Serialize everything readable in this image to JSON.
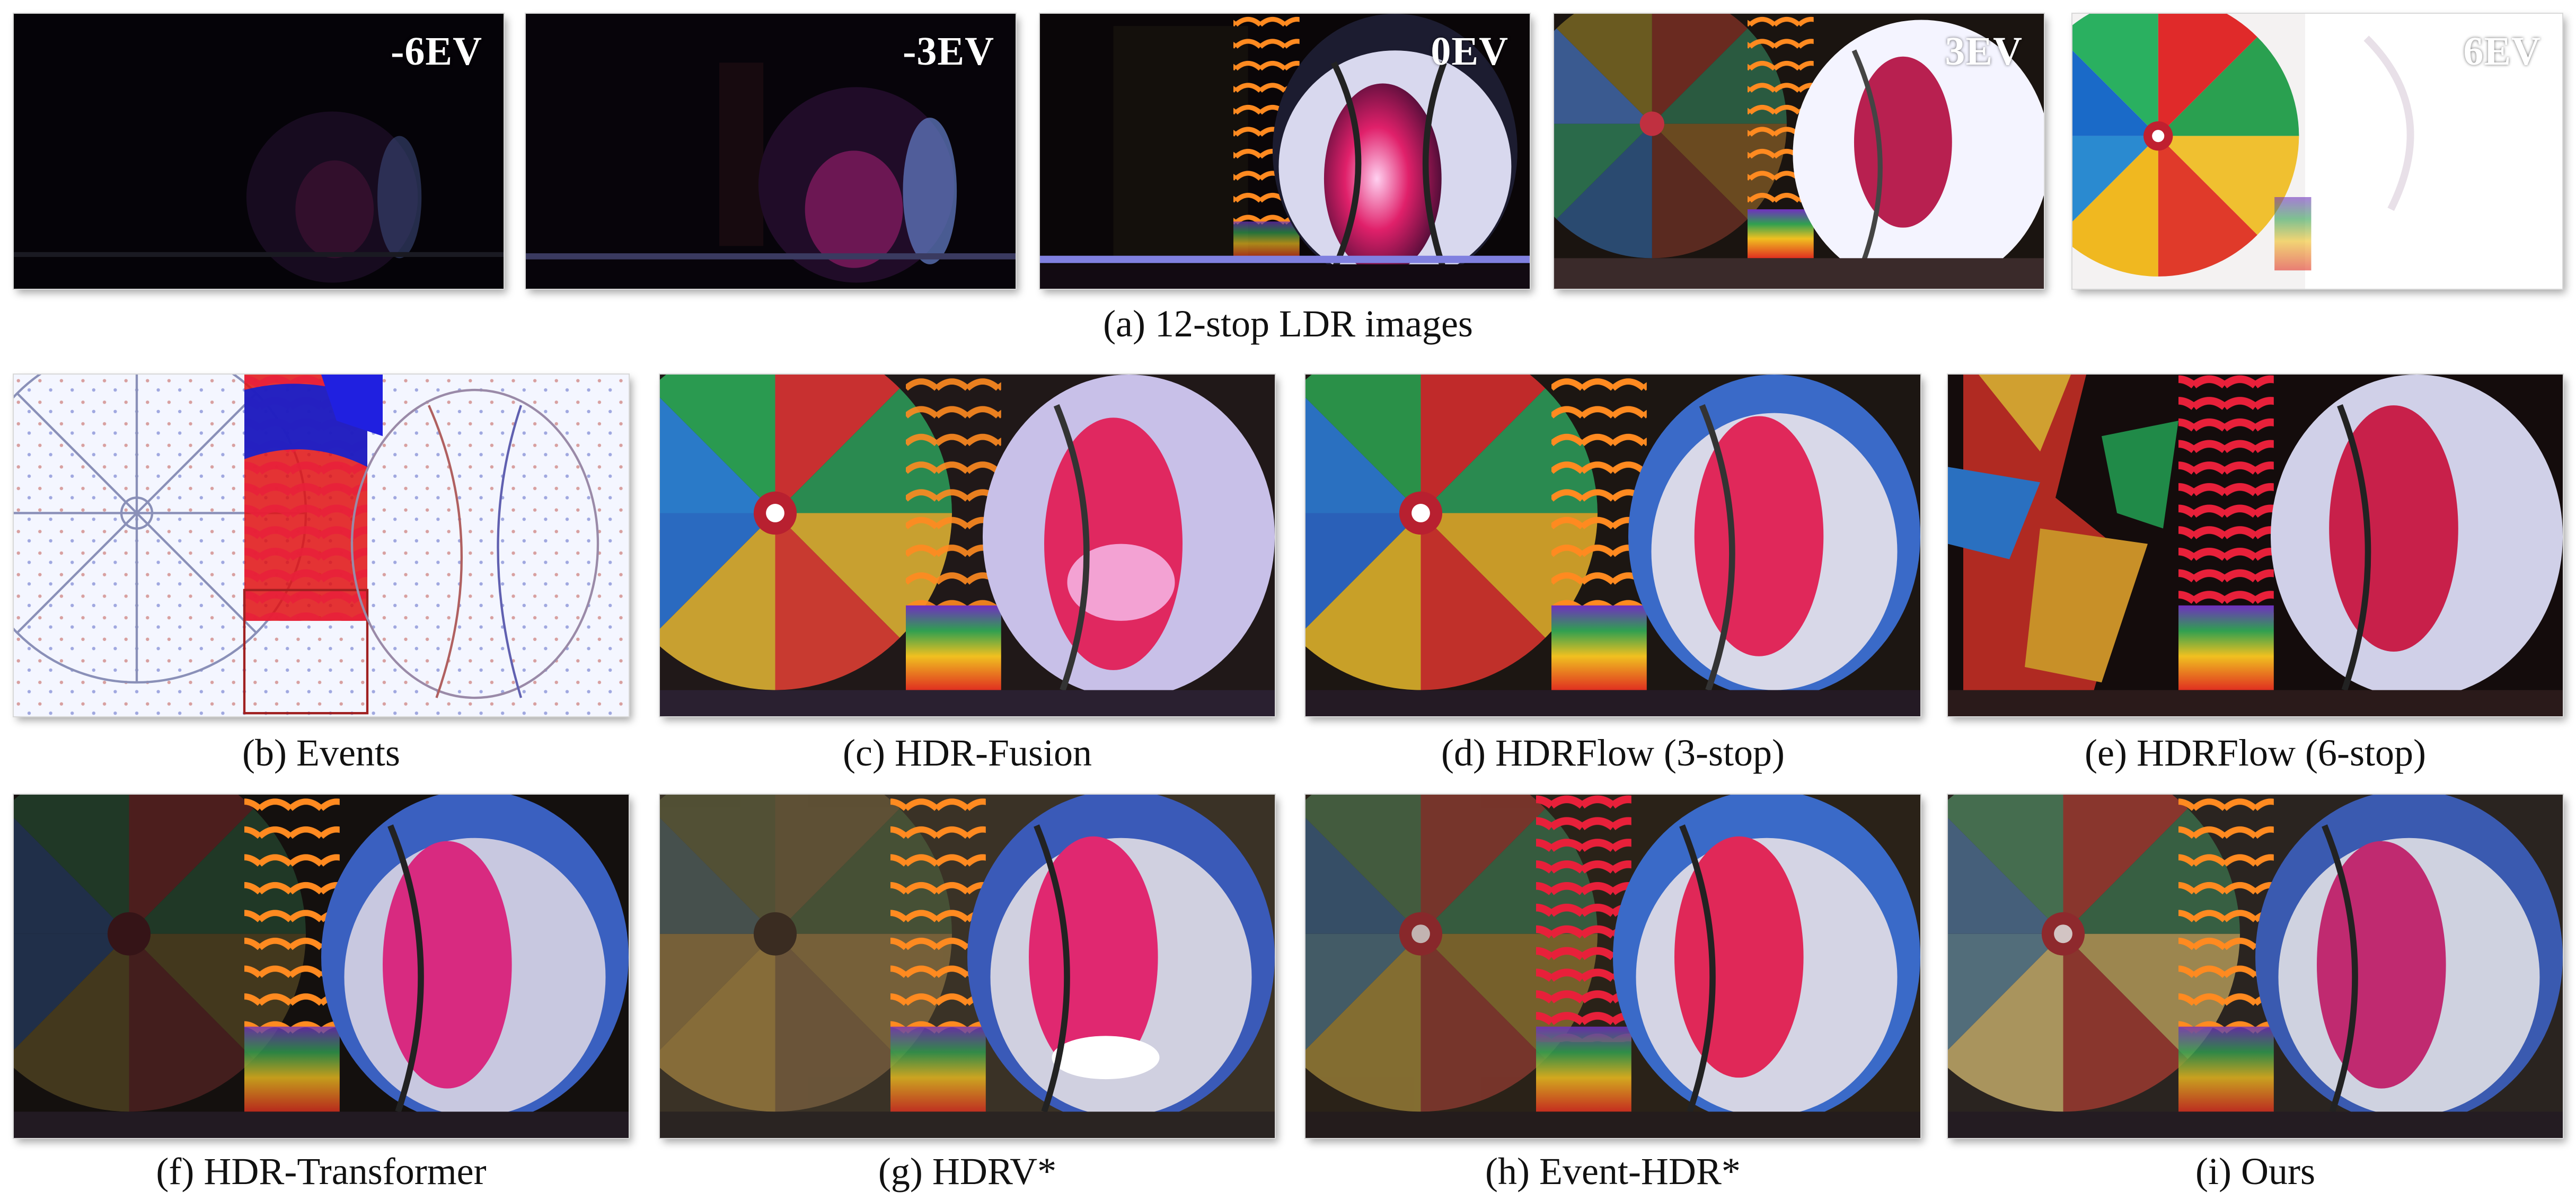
{
  "row1": {
    "exposures": [
      "-6EV",
      "-3EV",
      "0EV",
      "3EV",
      "6EV"
    ],
    "caption": "(a) 12-stop LDR images"
  },
  "captions": {
    "events": "(b) Events",
    "hdr_fusion": "(c) HDR-Fusion",
    "hdrflow_3": "(d) HDRFlow (3-stop)",
    "hdrflow_6": "(e) HDRFlow (6-stop)",
    "hdr_transformer": "(f) HDR-Transformer",
    "hdrv": "(g) HDRV*",
    "event_hdr": "(h)  Event-HDR*",
    "ours": "(i)  Ours"
  },
  "colors": {
    "wheel_red": "#c8202a",
    "wheel_green": "#1f8a3c",
    "wheel_blue": "#1f6fc2",
    "wheel_yellow": "#e8b020",
    "ball_pink": "#e0206a",
    "ball_blue": "#2a6fd0",
    "spring_orange": "#ff7a20",
    "event_red": "#e01010",
    "event_blue": "#1020d0"
  }
}
